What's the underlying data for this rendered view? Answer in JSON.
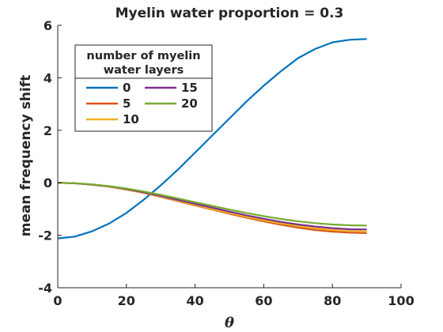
{
  "chart_data": {
    "type": "line",
    "title": "Myelin water proportion = 0.3",
    "xlabel": "θ",
    "ylabel": "mean frequency shift",
    "xlim": [
      0,
      100
    ],
    "ylim": [
      -4,
      6
    ],
    "xticks": [
      "0",
      "20",
      "40",
      "60",
      "80",
      "100"
    ],
    "yticks": [
      "-4",
      "-2",
      "0",
      "2",
      "4",
      "6"
    ],
    "grid": false,
    "legend": {
      "title": [
        "number of myelin",
        "water layers"
      ],
      "placement": "top-left"
    },
    "x": [
      0,
      5,
      10,
      15,
      20,
      25,
      30,
      35,
      40,
      45,
      50,
      55,
      60,
      65,
      70,
      75,
      80,
      85,
      90
    ],
    "series": [
      {
        "name": "0",
        "color": "#0072BD",
        "values": [
          -2.12,
          -2.05,
          -1.85,
          -1.55,
          -1.15,
          -0.65,
          -0.1,
          0.5,
          1.15,
          1.8,
          2.45,
          3.1,
          3.7,
          4.25,
          4.75,
          5.1,
          5.35,
          5.45,
          5.48
        ]
      },
      {
        "name": "5",
        "color": "#D95319",
        "values": [
          0,
          -0.02,
          -0.07,
          -0.15,
          -0.26,
          -0.39,
          -0.54,
          -0.7,
          -0.86,
          -1.02,
          -1.18,
          -1.33,
          -1.47,
          -1.6,
          -1.71,
          -1.8,
          -1.86,
          -1.9,
          -1.92
        ]
      },
      {
        "name": "10",
        "color": "#EDB120",
        "values": [
          0,
          -0.02,
          -0.07,
          -0.15,
          -0.25,
          -0.38,
          -0.52,
          -0.68,
          -0.84,
          -1.0,
          -1.15,
          -1.3,
          -1.43,
          -1.55,
          -1.65,
          -1.74,
          -1.8,
          -1.84,
          -1.86
        ]
      },
      {
        "name": "15",
        "color": "#7E2F8E",
        "values": [
          0,
          -0.02,
          -0.07,
          -0.14,
          -0.24,
          -0.36,
          -0.5,
          -0.65,
          -0.8,
          -0.95,
          -1.1,
          -1.24,
          -1.37,
          -1.49,
          -1.59,
          -1.67,
          -1.73,
          -1.77,
          -1.78
        ]
      },
      {
        "name": "20",
        "color": "#77AC30",
        "values": [
          0,
          -0.02,
          -0.06,
          -0.13,
          -0.22,
          -0.33,
          -0.46,
          -0.6,
          -0.74,
          -0.88,
          -1.02,
          -1.15,
          -1.27,
          -1.38,
          -1.47,
          -1.54,
          -1.59,
          -1.62,
          -1.63
        ]
      }
    ]
  }
}
